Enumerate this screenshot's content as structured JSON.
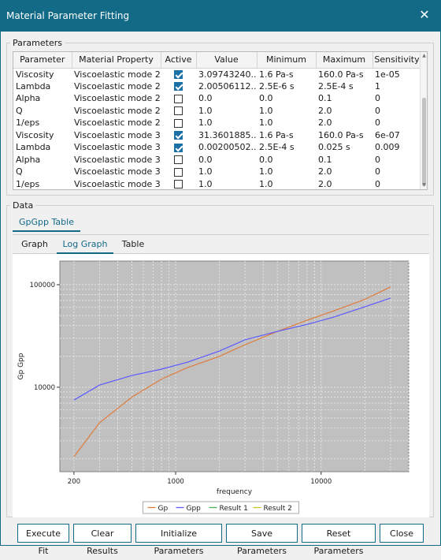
{
  "window": {
    "title": "Material Parameter Fitting"
  },
  "parameters": {
    "legend": "Parameters",
    "columns": [
      "Parameter",
      "Material Property",
      "Active",
      "Value",
      "Minimum",
      "Maximum",
      "Sensitivity"
    ],
    "rows": [
      {
        "param": "Viscosity",
        "prop": "Viscoelastic mode 2",
        "active": true,
        "value": "3.09743240...",
        "min": "1.6 Pa-s",
        "max": "160.0 Pa-s",
        "sens": "1e-05"
      },
      {
        "param": "Lambda",
        "prop": "Viscoelastic mode 2",
        "active": true,
        "value": "2.00506112...",
        "min": "2.5E-6 s",
        "max": "2.5E-4 s",
        "sens": "1"
      },
      {
        "param": "Alpha",
        "prop": "Viscoelastic mode 2",
        "active": false,
        "value": "0.0",
        "min": "0.0",
        "max": "0.1",
        "sens": "0"
      },
      {
        "param": "Q",
        "prop": "Viscoelastic mode 2",
        "active": false,
        "value": "1.0",
        "min": "1.0",
        "max": "2.0",
        "sens": "0"
      },
      {
        "param": "1/eps",
        "prop": "Viscoelastic mode 2",
        "active": false,
        "value": "1.0",
        "min": "1.0",
        "max": "2.0",
        "sens": "0"
      },
      {
        "param": "Viscosity",
        "prop": "Viscoelastic mode 3",
        "active": true,
        "value": "31.3601885...",
        "min": "1.6 Pa-s",
        "max": "160.0 Pa-s",
        "sens": "6e-07"
      },
      {
        "param": "Lambda",
        "prop": "Viscoelastic mode 3",
        "active": true,
        "value": "0.00200502...",
        "min": "2.5E-4 s",
        "max": "0.025 s",
        "sens": "0.009"
      },
      {
        "param": "Alpha",
        "prop": "Viscoelastic mode 3",
        "active": false,
        "value": "0.0",
        "min": "0.0",
        "max": "0.1",
        "sens": "0"
      },
      {
        "param": "Q",
        "prop": "Viscoelastic mode 3",
        "active": false,
        "value": "1.0",
        "min": "1.0",
        "max": "2.0",
        "sens": "0"
      },
      {
        "param": "1/eps",
        "prop": "Viscoelastic mode 3",
        "active": false,
        "value": "1.0",
        "min": "1.0",
        "max": "2.0",
        "sens": "0"
      }
    ]
  },
  "data_section": {
    "legend": "Data",
    "top_tab": "GpGpp Table",
    "sub_tabs": [
      "Graph",
      "Log Graph",
      "Table"
    ],
    "active_sub_tab": "Log Graph"
  },
  "chart_data": {
    "type": "line",
    "xlabel": "frequency",
    "ylabel": "Gp Gpp",
    "x_scale": "log",
    "y_scale": "log",
    "xlim": [
      160,
      40000
    ],
    "ylim": [
      1500,
      170000
    ],
    "x_ticks": [
      {
        "value": 200,
        "label": "200"
      },
      {
        "value": 1000,
        "label": "1000"
      },
      {
        "value": 10000,
        "label": "10000"
      }
    ],
    "y_ticks": [
      {
        "value": 10000,
        "label": "10000"
      },
      {
        "value": 100000,
        "label": "100000"
      }
    ],
    "grid": true,
    "legend_position": "bottom",
    "series": [
      {
        "name": "Gp",
        "color": "#e07b3a",
        "x": [
          200,
          300,
          500,
          800,
          1200,
          2000,
          3000,
          5000,
          8000,
          12000,
          20000,
          30000
        ],
        "y": [
          2100,
          4500,
          8000,
          12000,
          15500,
          20000,
          26000,
          35000,
          45000,
          55000,
          72000,
          95000
        ]
      },
      {
        "name": "Gpp",
        "color": "#5b5bff",
        "x": [
          200,
          300,
          500,
          800,
          1200,
          2000,
          3000,
          5000,
          8000,
          12000,
          20000,
          30000
        ],
        "y": [
          7500,
          10500,
          13000,
          15000,
          17500,
          22500,
          29000,
          35000,
          41000,
          48000,
          61000,
          74000
        ]
      },
      {
        "name": "Result 1",
        "color": "#4caf50",
        "x": [],
        "y": []
      },
      {
        "name": "Result 2",
        "color": "#c8c820",
        "x": [],
        "y": []
      }
    ]
  },
  "buttons": {
    "execute_fit": "Execute Fit",
    "clear_results": "Clear Results",
    "initialize_parameters": "Initialize Parameters",
    "save_parameters": "Save Parameters",
    "reset_parameters": "Reset Parameters",
    "close": "Close"
  }
}
